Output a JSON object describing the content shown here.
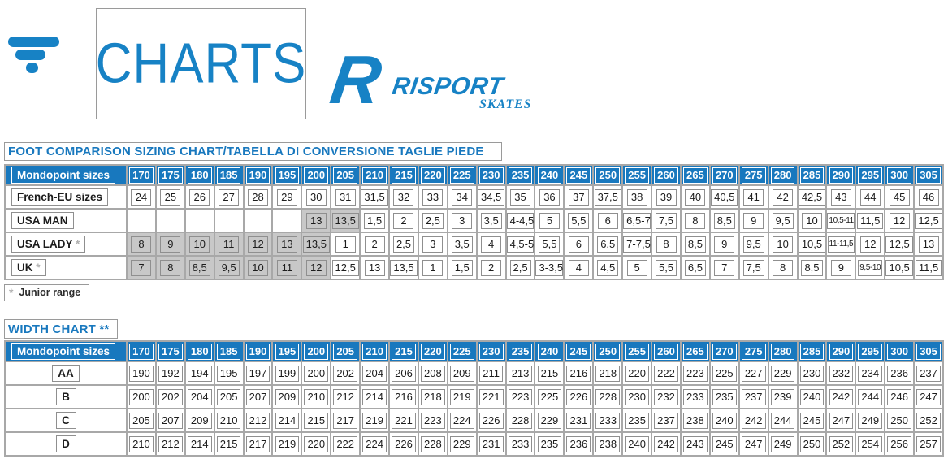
{
  "header": {
    "charts_label": "CHARTS",
    "risport_r": "R",
    "risport_name": "RISPORT",
    "risport_sub": "SKATES"
  },
  "colors": {
    "accent_blue": "#1878BE",
    "logo_blue": "#1782C5",
    "grid_gray": "#A8A8A8",
    "junior_gray": "#C8C8C8"
  },
  "foot_chart": {
    "title": "FOOT COMPARISON SIZING CHART/TABELLA DI CONVERSIONE TAGLIE PIEDE",
    "header_label": "Mondopoint sizes",
    "sizes": [
      "170",
      "175",
      "180",
      "185",
      "190",
      "195",
      "200",
      "205",
      "210",
      "215",
      "220",
      "225",
      "230",
      "235",
      "240",
      "245",
      "250",
      "255",
      "260",
      "265",
      "270",
      "275",
      "280",
      "285",
      "290",
      "295",
      "300",
      "305"
    ],
    "rows": [
      {
        "label": "French-EU sizes",
        "asterisk": "",
        "junior": [],
        "values": [
          "24",
          "25",
          "26",
          "27",
          "28",
          "29",
          "30",
          "31",
          "31,5",
          "32",
          "33",
          "34",
          "34,5",
          "35",
          "36",
          "37",
          "37,5",
          "38",
          "39",
          "40",
          "40,5",
          "41",
          "42",
          "42,5",
          "43",
          "44",
          "45",
          "46"
        ]
      },
      {
        "label": "USA MAN",
        "asterisk": "",
        "junior": [
          6,
          7
        ],
        "values": [
          "",
          "",
          "",
          "",
          "",
          "",
          "13",
          "13,5",
          "1,5",
          "2",
          "2,5",
          "3",
          "3,5",
          "4-4,5",
          "5",
          "5,5",
          "6",
          "6,5-7",
          "7,5",
          "8",
          "8,5",
          "9",
          "9,5",
          "10",
          "10,5-11",
          "11,5",
          "12",
          "12,5"
        ]
      },
      {
        "label": "USA LADY",
        "asterisk": "*",
        "junior": [
          0,
          1,
          2,
          3,
          4,
          5,
          6
        ],
        "values": [
          "8",
          "9",
          "10",
          "11",
          "12",
          "13",
          "13,5",
          "1",
          "2",
          "2,5",
          "3",
          "3,5",
          "4",
          "4,5-5",
          "5,5",
          "6",
          "6,5",
          "7-7,5",
          "8",
          "8,5",
          "9",
          "9,5",
          "10",
          "10,5",
          "11-11,5",
          "12",
          "12,5",
          "13"
        ]
      },
      {
        "label": "UK",
        "asterisk": "*",
        "junior": [
          0,
          1,
          2,
          3,
          4,
          5,
          6
        ],
        "values": [
          "7",
          "8",
          "8,5",
          "9,5",
          "10",
          "11",
          "12",
          "12,5",
          "13",
          "13,5",
          "1",
          "1,5",
          "2",
          "2,5",
          "3-3,5",
          "4",
          "4,5",
          "5",
          "5,5",
          "6,5",
          "7",
          "7,5",
          "8",
          "8,5",
          "9",
          "9,5-10",
          "10,5",
          "11,5"
        ]
      }
    ],
    "footnote_marker": "*",
    "footnote_text": "Junior range"
  },
  "width_chart": {
    "title": "WIDTH CHART **",
    "header_label": "Mondopoint sizes",
    "sizes": [
      "170",
      "175",
      "180",
      "185",
      "190",
      "195",
      "200",
      "205",
      "210",
      "215",
      "220",
      "225",
      "230",
      "235",
      "240",
      "245",
      "250",
      "255",
      "260",
      "265",
      "270",
      "275",
      "280",
      "285",
      "290",
      "295",
      "300",
      "305"
    ],
    "rows": [
      {
        "label": "AA",
        "asterisk": "",
        "junior": [],
        "values": [
          "190",
          "192",
          "194",
          "195",
          "197",
          "199",
          "200",
          "202",
          "204",
          "206",
          "208",
          "209",
          "211",
          "213",
          "215",
          "216",
          "218",
          "220",
          "222",
          "223",
          "225",
          "227",
          "229",
          "230",
          "232",
          "234",
          "236",
          "237"
        ]
      },
      {
        "label": "B",
        "asterisk": "",
        "junior": [],
        "values": [
          "200",
          "202",
          "204",
          "205",
          "207",
          "209",
          "210",
          "212",
          "214",
          "216",
          "218",
          "219",
          "221",
          "223",
          "225",
          "226",
          "228",
          "230",
          "232",
          "233",
          "235",
          "237",
          "239",
          "240",
          "242",
          "244",
          "246",
          "247"
        ]
      },
      {
        "label": "C",
        "asterisk": "",
        "junior": [],
        "values": [
          "205",
          "207",
          "209",
          "210",
          "212",
          "214",
          "215",
          "217",
          "219",
          "221",
          "223",
          "224",
          "226",
          "228",
          "229",
          "231",
          "233",
          "235",
          "237",
          "238",
          "240",
          "242",
          "244",
          "245",
          "247",
          "249",
          "250",
          "252"
        ]
      },
      {
        "label": "D",
        "asterisk": "",
        "junior": [],
        "values": [
          "210",
          "212",
          "214",
          "215",
          "217",
          "219",
          "220",
          "222",
          "224",
          "226",
          "228",
          "229",
          "231",
          "233",
          "235",
          "236",
          "238",
          "240",
          "242",
          "243",
          "245",
          "247",
          "249",
          "250",
          "252",
          "254",
          "256",
          "257"
        ]
      }
    ]
  }
}
